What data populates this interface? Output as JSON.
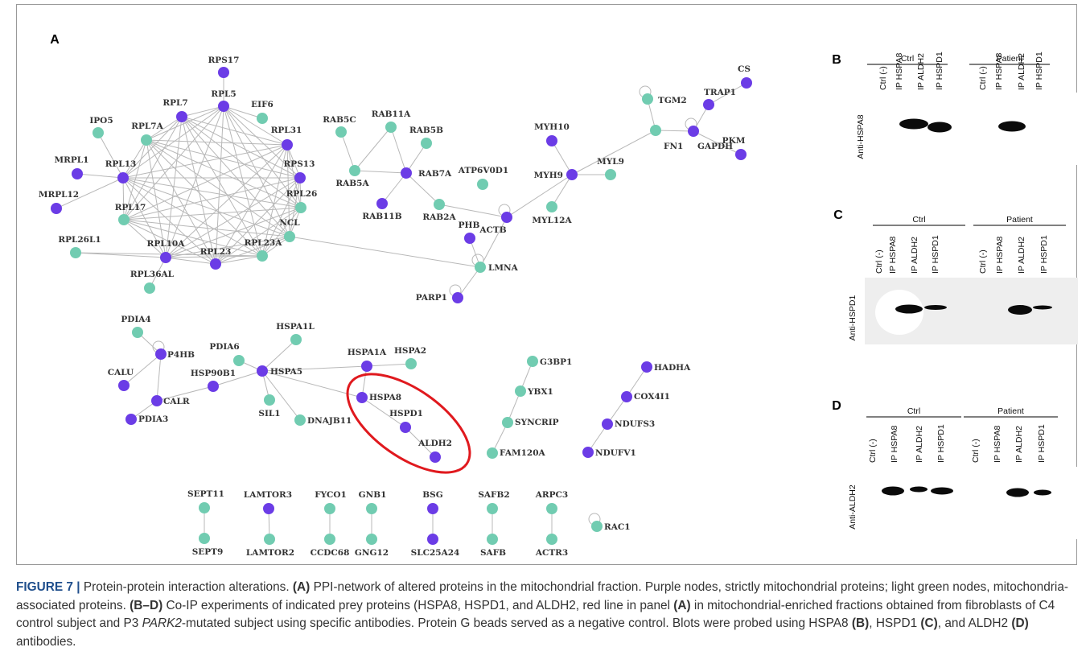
{
  "panel_labels": [
    "A",
    "B",
    "C",
    "D"
  ],
  "network": {
    "nodes": [
      {
        "label": "RPS17",
        "color": "#6b3ce6"
      },
      {
        "label": "RPL5",
        "color": "#6b3ce6"
      },
      {
        "label": "EIF6",
        "color": "#71ccb1"
      },
      {
        "label": "RPL7",
        "color": "#6b3ce6"
      },
      {
        "label": "RPL31",
        "color": "#6b3ce6"
      },
      {
        "label": "RPL7A",
        "color": "#71ccb1"
      },
      {
        "label": "IPO5",
        "color": "#71ccb1"
      },
      {
        "label": "MRPL1",
        "color": "#6b3ce6"
      },
      {
        "label": "RPL13",
        "color": "#6b3ce6"
      },
      {
        "label": "MRPL12",
        "color": "#6b3ce6"
      },
      {
        "label": "RPS13",
        "color": "#6b3ce6"
      },
      {
        "label": "RPL26",
        "color": "#71ccb1"
      },
      {
        "label": "RPL17",
        "color": "#71ccb1"
      },
      {
        "label": "NCL",
        "color": "#71ccb1"
      },
      {
        "label": "RPL26L1",
        "color": "#71ccb1"
      },
      {
        "label": "RPL10A",
        "color": "#6b3ce6"
      },
      {
        "label": "RPL23",
        "color": "#6b3ce6"
      },
      {
        "label": "RPL23A",
        "color": "#71ccb1"
      },
      {
        "label": "RPL36AL",
        "color": "#71ccb1"
      },
      {
        "label": "RAB5C",
        "color": "#71ccb1"
      },
      {
        "label": "RAB11A",
        "color": "#71ccb1"
      },
      {
        "label": "RAB5B",
        "color": "#71ccb1"
      },
      {
        "label": "RAB5A",
        "color": "#71ccb1"
      },
      {
        "label": "RAB7A",
        "color": "#6b3ce6"
      },
      {
        "label": "RAB11B",
        "color": "#6b3ce6"
      },
      {
        "label": "RAB2A",
        "color": "#71ccb1"
      },
      {
        "label": "ATP6V0D1",
        "color": "#71ccb1"
      },
      {
        "label": "MYH10",
        "color": "#6b3ce6"
      },
      {
        "label": "MYH9",
        "color": "#6b3ce6"
      },
      {
        "label": "MYL9",
        "color": "#71ccb1"
      },
      {
        "label": "MYL12A",
        "color": "#71ccb1"
      },
      {
        "label": "ACTB",
        "color": "#6b3ce6"
      },
      {
        "label": "PHB",
        "color": "#6b3ce6"
      },
      {
        "label": "LMNA",
        "color": "#71ccb1"
      },
      {
        "label": "PARP1",
        "color": "#6b3ce6"
      },
      {
        "label": "TGM2",
        "color": "#71ccb1"
      },
      {
        "label": "FN1",
        "color": "#71ccb1"
      },
      {
        "label": "GAPDH",
        "color": "#6b3ce6"
      },
      {
        "label": "TRAP1",
        "color": "#6b3ce6"
      },
      {
        "label": "CS",
        "color": "#6b3ce6"
      },
      {
        "label": "PKM",
        "color": "#6b3ce6"
      },
      {
        "label": "PDIA4",
        "color": "#71ccb1"
      },
      {
        "label": "P4HB",
        "color": "#6b3ce6"
      },
      {
        "label": "CALU",
        "color": "#6b3ce6"
      },
      {
        "label": "PDIA6",
        "color": "#71ccb1"
      },
      {
        "label": "HSPA1L",
        "color": "#71ccb1"
      },
      {
        "label": "HSPA5",
        "color": "#6b3ce6"
      },
      {
        "label": "HSP90B1",
        "color": "#6b3ce6"
      },
      {
        "label": "CALR",
        "color": "#6b3ce6"
      },
      {
        "label": "PDIA3",
        "color": "#6b3ce6"
      },
      {
        "label": "SIL1",
        "color": "#71ccb1"
      },
      {
        "label": "DNAJB11",
        "color": "#71ccb1"
      },
      {
        "label": "HSPA1A",
        "color": "#6b3ce6"
      },
      {
        "label": "HSPA2",
        "color": "#71ccb1"
      },
      {
        "label": "HSPA8",
        "color": "#6b3ce6"
      },
      {
        "label": "HSPD1",
        "color": "#6b3ce6"
      },
      {
        "label": "ALDH2",
        "color": "#6b3ce6"
      },
      {
        "label": "G3BP1",
        "color": "#71ccb1"
      },
      {
        "label": "YBX1",
        "color": "#71ccb1"
      },
      {
        "label": "SYNCRIP",
        "color": "#71ccb1"
      },
      {
        "label": "FAM120A",
        "color": "#71ccb1"
      },
      {
        "label": "HADHA",
        "color": "#6b3ce6"
      },
      {
        "label": "COX4I1",
        "color": "#6b3ce6"
      },
      {
        "label": "NDUFS3",
        "color": "#6b3ce6"
      },
      {
        "label": "NDUFV1",
        "color": "#6b3ce6"
      },
      {
        "label": "SEPT11",
        "color": "#71ccb1"
      },
      {
        "label": "SEPT9",
        "color": "#71ccb1"
      },
      {
        "label": "LAMTOR3",
        "color": "#6b3ce6"
      },
      {
        "label": "LAMTOR2",
        "color": "#71ccb1"
      },
      {
        "label": "FYCO1",
        "color": "#71ccb1"
      },
      {
        "label": "CCDC68",
        "color": "#71ccb1"
      },
      {
        "label": "GNB1",
        "color": "#71ccb1"
      },
      {
        "label": "GNG12",
        "color": "#71ccb1"
      },
      {
        "label": "BSG",
        "color": "#6b3ce6"
      },
      {
        "label": "SLC25A24",
        "color": "#6b3ce6"
      },
      {
        "label": "SAFB2",
        "color": "#71ccb1"
      },
      {
        "label": "SAFB",
        "color": "#71ccb1"
      },
      {
        "label": "ARPC3",
        "color": "#71ccb1"
      },
      {
        "label": "ACTR3",
        "color": "#71ccb1"
      },
      {
        "label": "RAC1",
        "color": "#71ccb1"
      }
    ]
  },
  "blots": [
    {
      "groups": [
        "Ctrl",
        "Patient"
      ],
      "lanes": [
        "Ctrl (-)",
        "IP HSPA8",
        "IP ALDH2",
        "IP HSPD1"
      ],
      "antibody": "Anti-HSPA8"
    },
    {
      "groups": [
        "Ctrl",
        "Patient"
      ],
      "lanes": [
        "Ctrl (-)",
        "IP HSPA8",
        "IP ALDH2",
        "IP HSPD1"
      ],
      "antibody": "Anti-HSPD1"
    },
    {
      "groups": [
        "Ctrl",
        "Patient"
      ],
      "lanes": [
        "Ctrl (-)",
        "IP HSPA8",
        "IP ALDH2",
        "IP HSPD1"
      ],
      "antibody": "Anti-ALDH2"
    }
  ],
  "caption": [
    "FIGURE 7 |",
    " Protein-protein interaction alterations. ",
    "(A)",
    " PPI-network of altered proteins in the mitochondrial fraction. Purple nodes, strictly mitochondrial proteins; light green nodes, mitochondria-associated proteins. ",
    "(B–D)",
    " Co-IP experiments of indicated prey proteins (HSPA8, HSPD1, and ALDH2, red line in panel ",
    "(A)",
    " in mitochondrial-enriched fractions obtained from fibroblasts of C4 control subject and P3 ",
    "PARK2",
    "-mutated subject using specific antibodies. Protein G beads served as a negative control. Blots were probed using HSPA8 ",
    "(B)",
    ", HSPD1 ",
    "(C)",
    ", and ALDH2 ",
    "(D)",
    " antibodies."
  ]
}
